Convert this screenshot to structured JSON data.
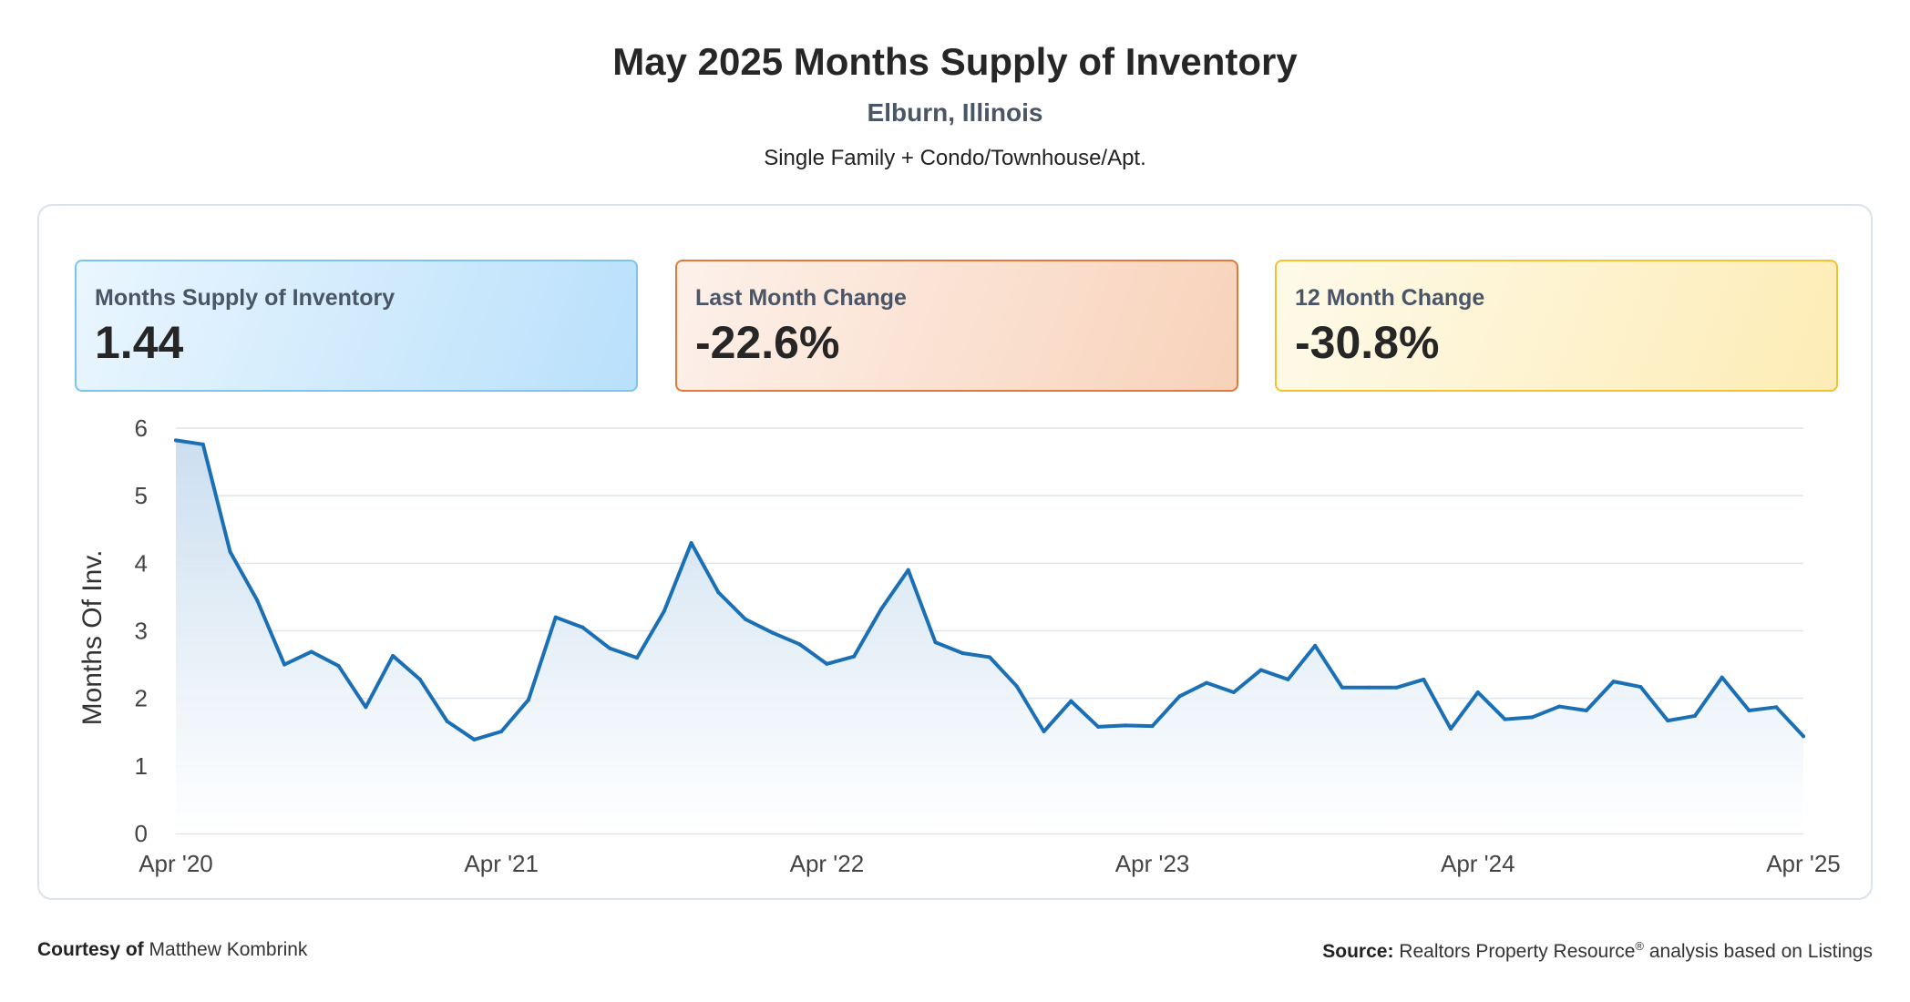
{
  "header": {
    "title": "May 2025 Months Supply of Inventory",
    "subtitle": "Elburn, Illinois",
    "property_types": "Single Family + Condo/Townhouse/Apt."
  },
  "cards": [
    {
      "label": "Months Supply of Inventory",
      "value": "1.44",
      "accent": "#7cc4ee"
    },
    {
      "label": "Last Month Change",
      "value": "-22.6%",
      "accent": "#e07a3c"
    },
    {
      "label": "12 Month Change",
      "value": "-30.8%",
      "accent": "#f2c230"
    }
  ],
  "chart_data": {
    "type": "area",
    "title": "",
    "xlabel": "",
    "ylabel": "Months Of Inv.",
    "ylim": [
      0,
      6
    ],
    "yticks": [
      0,
      1,
      2,
      3,
      4,
      5,
      6
    ],
    "x_tick_labels": [
      "Apr '20",
      "Apr '21",
      "Apr '22",
      "Apr '23",
      "Apr '24",
      "Apr '25"
    ],
    "x": [
      "2020-04",
      "2020-05",
      "2020-06",
      "2020-07",
      "2020-08",
      "2020-09",
      "2020-10",
      "2020-11",
      "2020-12",
      "2021-01",
      "2021-02",
      "2021-03",
      "2021-04",
      "2021-05",
      "2021-06",
      "2021-07",
      "2021-08",
      "2021-09",
      "2021-10",
      "2021-11",
      "2021-12",
      "2022-01",
      "2022-02",
      "2022-03",
      "2022-04",
      "2022-05",
      "2022-06",
      "2022-07",
      "2022-08",
      "2022-09",
      "2022-10",
      "2022-11",
      "2022-12",
      "2023-01",
      "2023-02",
      "2023-03",
      "2023-04",
      "2023-05",
      "2023-06",
      "2023-07",
      "2023-08",
      "2023-09",
      "2023-10",
      "2023-11",
      "2023-12",
      "2024-01",
      "2024-02",
      "2024-03",
      "2024-04",
      "2024-05",
      "2024-06",
      "2024-07",
      "2024-08",
      "2024-09",
      "2024-10",
      "2024-11",
      "2024-12",
      "2025-01",
      "2025-02",
      "2025-03",
      "2025-04"
    ],
    "series": [
      {
        "color": "#1a6fb5",
        "values": [
          5.82,
          5.76,
          4.17,
          3.45,
          2.5,
          2.69,
          2.48,
          1.87,
          2.63,
          2.28,
          1.66,
          1.39,
          1.51,
          1.98,
          3.2,
          3.05,
          2.74,
          2.6,
          3.29,
          4.3,
          3.57,
          3.17,
          2.97,
          2.8,
          2.51,
          2.62,
          3.32,
          3.9,
          2.83,
          2.67,
          2.61,
          2.18,
          1.51,
          1.96,
          1.58,
          1.6,
          1.59,
          2.03,
          2.23,
          2.09,
          2.42,
          2.28,
          2.78,
          2.16,
          2.16,
          2.16,
          2.28,
          1.55,
          2.09,
          1.69,
          1.72,
          1.88,
          1.82,
          2.25,
          2.17,
          1.67,
          1.74,
          2.31,
          1.82,
          1.87,
          1.44
        ]
      }
    ],
    "grid": true,
    "legend": "none"
  },
  "footer": {
    "courtesy_label": "Courtesy of",
    "courtesy_name": "Matthew Kombrink",
    "source_label": "Source:",
    "source_text_a": "Realtors Property Resource",
    "source_reg": "®",
    "source_text_b": " analysis based on Listings"
  }
}
